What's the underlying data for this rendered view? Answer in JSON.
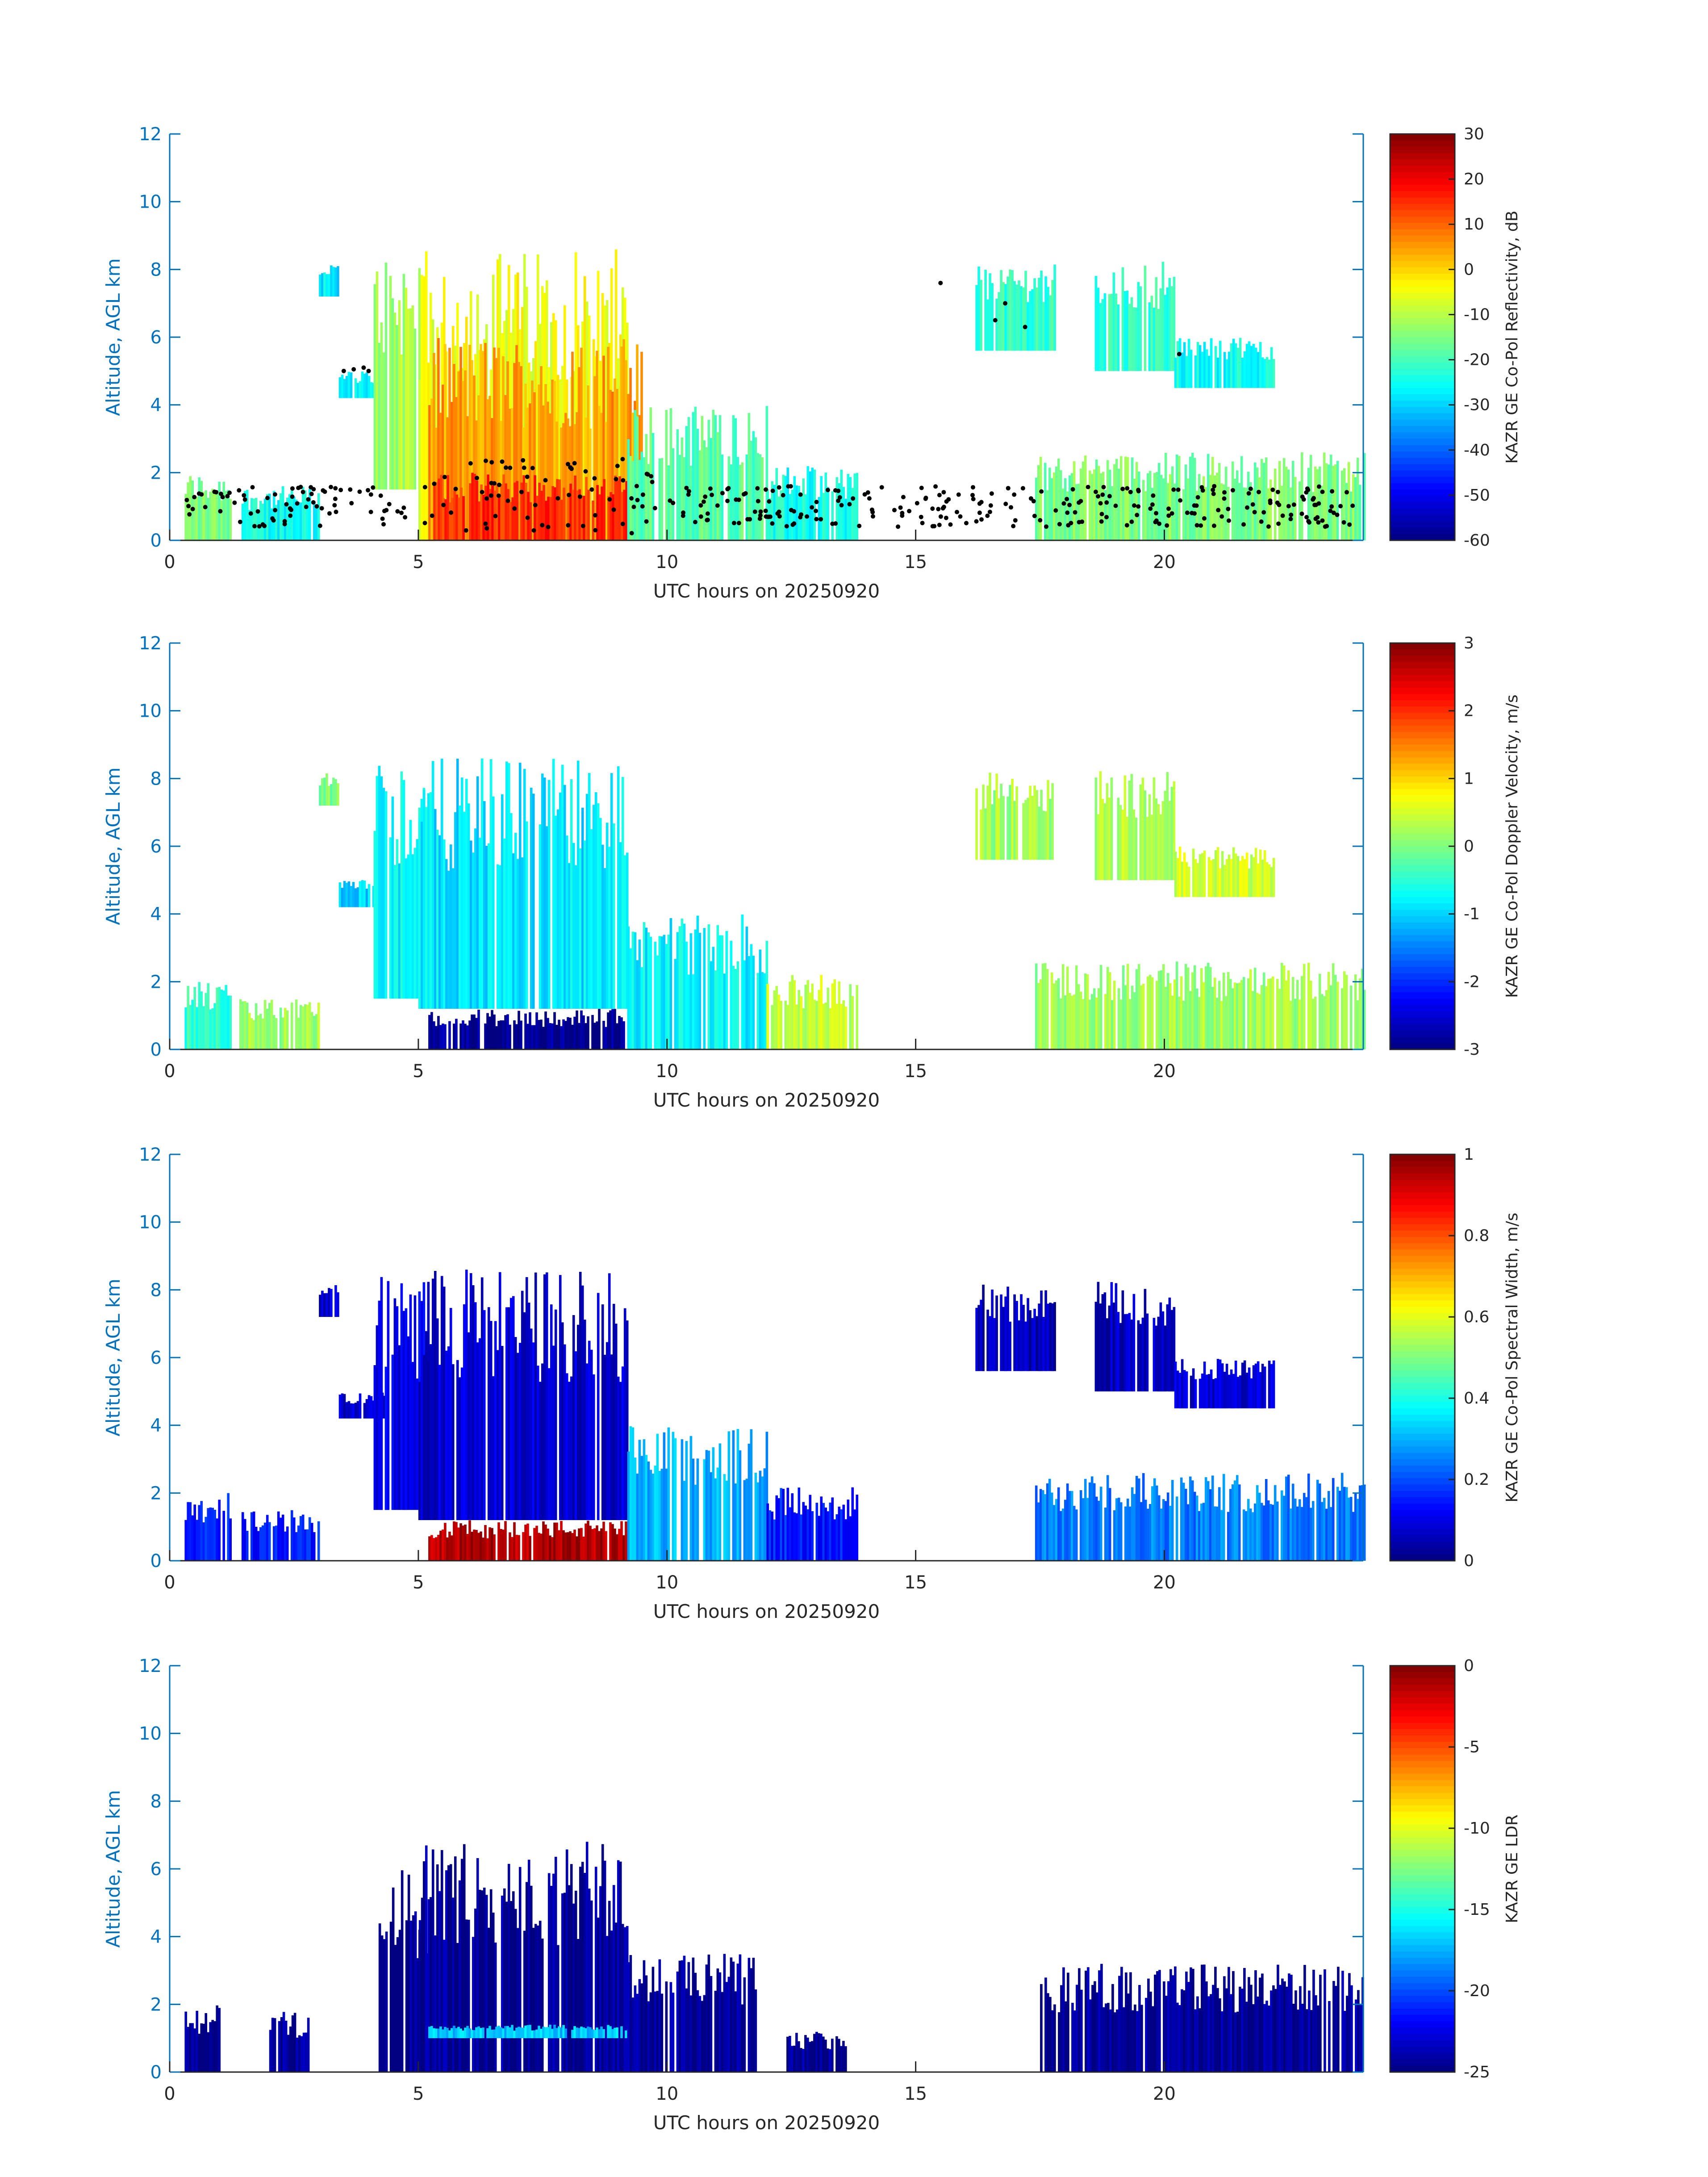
{
  "chart_data": [
    {
      "type": "heatmap",
      "title": "",
      "xlabel": "UTC hours on 20250920",
      "ylabel": "Altitude, AGL km",
      "xlim": [
        0,
        24
      ],
      "ylim": [
        0,
        12
      ],
      "xticks": [
        0,
        5,
        10,
        15,
        20
      ],
      "yticks": [
        0,
        2,
        4,
        6,
        8,
        10,
        12
      ],
      "colorbar": {
        "label": "KAZR GE Co-Pol Reflectivity, dB",
        "range": [
          -60,
          30
        ],
        "ticks": [
          30,
          20,
          10,
          0,
          -10,
          -20,
          -30,
          -40,
          -50,
          -60
        ]
      },
      "colormap": "jet",
      "overlay": "black dots (cloud base)",
      "regions": [
        {
          "x0": 0.3,
          "x1": 1.2,
          "y0": 0,
          "y1": 2,
          "v": -15
        },
        {
          "x0": 1.4,
          "x1": 3.0,
          "y0": 0,
          "y1": 1.6,
          "v": -25
        },
        {
          "x0": 3.0,
          "x1": 3.4,
          "y0": 7.2,
          "y1": 8.2,
          "v": -28
        },
        {
          "x0": 3.4,
          "x1": 4.3,
          "y0": 4.2,
          "y1": 5.0,
          "v": -28
        },
        {
          "x0": 4.1,
          "x1": 5.0,
          "y0": 1.5,
          "y1": 8.5,
          "v": -12
        },
        {
          "x0": 5.0,
          "x1": 9.2,
          "y0": 0,
          "y1": 8.6,
          "v": -5
        },
        {
          "x0": 5.2,
          "x1": 9.5,
          "y0": 0,
          "y1": 6.0,
          "v": 5
        },
        {
          "x0": 5.3,
          "x1": 9.5,
          "y0": 0,
          "y1": 2.0,
          "v": 15
        },
        {
          "x0": 9.2,
          "x1": 12.0,
          "y0": 0,
          "y1": 4.0,
          "v": -18
        },
        {
          "x0": 12.0,
          "x1": 13.8,
          "y0": 0,
          "y1": 2.2,
          "v": -25
        },
        {
          "x0": 16.2,
          "x1": 17.8,
          "y0": 5.6,
          "y1": 8.2,
          "v": -22
        },
        {
          "x0": 18.6,
          "x1": 20.2,
          "y0": 5.0,
          "y1": 8.3,
          "v": -22
        },
        {
          "x0": 20.2,
          "x1": 22.2,
          "y0": 4.5,
          "y1": 6.0,
          "v": -25
        },
        {
          "x0": 17.4,
          "x1": 24.0,
          "y0": 0,
          "y1": 2.6,
          "v": -15
        }
      ]
    },
    {
      "type": "heatmap",
      "title": "",
      "xlabel": "UTC hours on 20250920",
      "ylabel": "Altitude, AGL km",
      "xlim": [
        0,
        24
      ],
      "ylim": [
        0,
        12
      ],
      "xticks": [
        0,
        5,
        10,
        15,
        20
      ],
      "yticks": [
        0,
        2,
        4,
        6,
        8,
        10,
        12
      ],
      "colorbar": {
        "label": "KAZR GE Co-Pol Doppler Velocity, m/s",
        "range": [
          -3,
          3
        ],
        "ticks": [
          3,
          2,
          1,
          0,
          -1,
          -2,
          -3
        ]
      },
      "colormap": "jet",
      "regions": [
        {
          "x0": 0.3,
          "x1": 1.2,
          "y0": 0,
          "y1": 2,
          "v": -0.5
        },
        {
          "x0": 1.4,
          "x1": 3.0,
          "y0": 0,
          "y1": 1.5,
          "v": 0.2
        },
        {
          "x0": 3.0,
          "x1": 3.4,
          "y0": 7.2,
          "y1": 8.2,
          "v": 0.0
        },
        {
          "x0": 3.4,
          "x1": 4.3,
          "y0": 4.2,
          "y1": 5.0,
          "v": -1.0
        },
        {
          "x0": 4.1,
          "x1": 5.2,
          "y0": 1.5,
          "y1": 8.5,
          "v": -0.8
        },
        {
          "x0": 5.0,
          "x1": 9.2,
          "y0": 1.2,
          "y1": 8.6,
          "v": -0.9
        },
        {
          "x0": 5.2,
          "x1": 9.5,
          "y0": 0,
          "y1": 1.2,
          "v": -2.9
        },
        {
          "x0": 9.2,
          "x1": 12.0,
          "y0": 0,
          "y1": 4.0,
          "v": -0.8
        },
        {
          "x0": 12.0,
          "x1": 13.8,
          "y0": 0,
          "y1": 2.2,
          "v": 0.4
        },
        {
          "x0": 16.2,
          "x1": 17.8,
          "y0": 5.6,
          "y1": 8.2,
          "v": 0.2
        },
        {
          "x0": 18.6,
          "x1": 20.2,
          "y0": 5.0,
          "y1": 8.3,
          "v": 0.3
        },
        {
          "x0": 20.2,
          "x1": 22.2,
          "y0": 4.5,
          "y1": 6.0,
          "v": 0.5
        },
        {
          "x0": 17.4,
          "x1": 24.0,
          "y0": 0,
          "y1": 2.6,
          "v": 0.2
        }
      ]
    },
    {
      "type": "heatmap",
      "title": "",
      "xlabel": "UTC hours on 20250920",
      "ylabel": "Altitude, AGL km",
      "xlim": [
        0,
        24
      ],
      "ylim": [
        0,
        12
      ],
      "xticks": [
        0,
        5,
        10,
        15,
        20
      ],
      "yticks": [
        0,
        2,
        4,
        6,
        8,
        10,
        12
      ],
      "colorbar": {
        "label": "KAZR GE Co-Pol Spectral Width, m/s",
        "range": [
          0,
          1
        ],
        "ticks": [
          1,
          0.8,
          0.6,
          0.4,
          0.2,
          0
        ]
      },
      "colormap": "jet",
      "regions": [
        {
          "x0": 0.3,
          "x1": 1.2,
          "y0": 0,
          "y1": 2,
          "v": 0.15
        },
        {
          "x0": 1.4,
          "x1": 3.0,
          "y0": 0,
          "y1": 1.5,
          "v": 0.15
        },
        {
          "x0": 3.0,
          "x1": 3.4,
          "y0": 7.2,
          "y1": 8.2,
          "v": 0.08
        },
        {
          "x0": 3.4,
          "x1": 4.3,
          "y0": 4.2,
          "y1": 5.0,
          "v": 0.08
        },
        {
          "x0": 4.1,
          "x1": 5.2,
          "y0": 1.5,
          "y1": 8.5,
          "v": 0.1
        },
        {
          "x0": 5.0,
          "x1": 9.2,
          "y0": 1.2,
          "y1": 8.6,
          "v": 0.08
        },
        {
          "x0": 5.2,
          "x1": 9.5,
          "y0": 0,
          "y1": 1.2,
          "v": 0.95
        },
        {
          "x0": 9.2,
          "x1": 12.0,
          "y0": 0,
          "y1": 4.0,
          "v": 0.3
        },
        {
          "x0": 12.0,
          "x1": 13.8,
          "y0": 0,
          "y1": 2.2,
          "v": 0.15
        },
        {
          "x0": 16.2,
          "x1": 17.8,
          "y0": 5.6,
          "y1": 8.2,
          "v": 0.05
        },
        {
          "x0": 18.6,
          "x1": 20.2,
          "y0": 5.0,
          "y1": 8.3,
          "v": 0.06
        },
        {
          "x0": 20.2,
          "x1": 22.2,
          "y0": 4.5,
          "y1": 6.0,
          "v": 0.08
        },
        {
          "x0": 17.4,
          "x1": 24.0,
          "y0": 0,
          "y1": 2.6,
          "v": 0.25
        }
      ]
    },
    {
      "type": "heatmap",
      "title": "",
      "xlabel": "UTC hours on 20250920",
      "ylabel": "Altitude, AGL km",
      "xlim": [
        0,
        24
      ],
      "ylim": [
        0,
        12
      ],
      "xticks": [
        0,
        5,
        10,
        15,
        20
      ],
      "yticks": [
        0,
        2,
        4,
        6,
        8,
        10,
        12
      ],
      "colorbar": {
        "label": "KAZR GE LDR",
        "range": [
          -25,
          0
        ],
        "ticks": [
          0,
          -5,
          -10,
          -15,
          -20,
          -25
        ]
      },
      "colormap": "jet",
      "regions": [
        {
          "x0": 0.3,
          "x1": 1.0,
          "y0": 0,
          "y1": 2,
          "v": -24.5
        },
        {
          "x0": 2.0,
          "x1": 2.8,
          "y0": 0,
          "y1": 1.8,
          "v": -24.5
        },
        {
          "x0": 4.2,
          "x1": 5.2,
          "y0": 0,
          "y1": 6.0,
          "v": -24.5
        },
        {
          "x0": 5.0,
          "x1": 9.2,
          "y0": 0,
          "y1": 6.8,
          "v": -24.5
        },
        {
          "x0": 5.2,
          "x1": 9.5,
          "y0": 1.0,
          "y1": 1.4,
          "v": -17.0
        },
        {
          "x0": 9.2,
          "x1": 11.8,
          "y0": 0,
          "y1": 3.5,
          "v": -24.5
        },
        {
          "x0": 12.4,
          "x1": 13.6,
          "y0": 0,
          "y1": 1.2,
          "v": -24.5
        },
        {
          "x0": 17.5,
          "x1": 24.0,
          "y0": 0,
          "y1": 3.2,
          "v": -24.5
        }
      ]
    }
  ]
}
